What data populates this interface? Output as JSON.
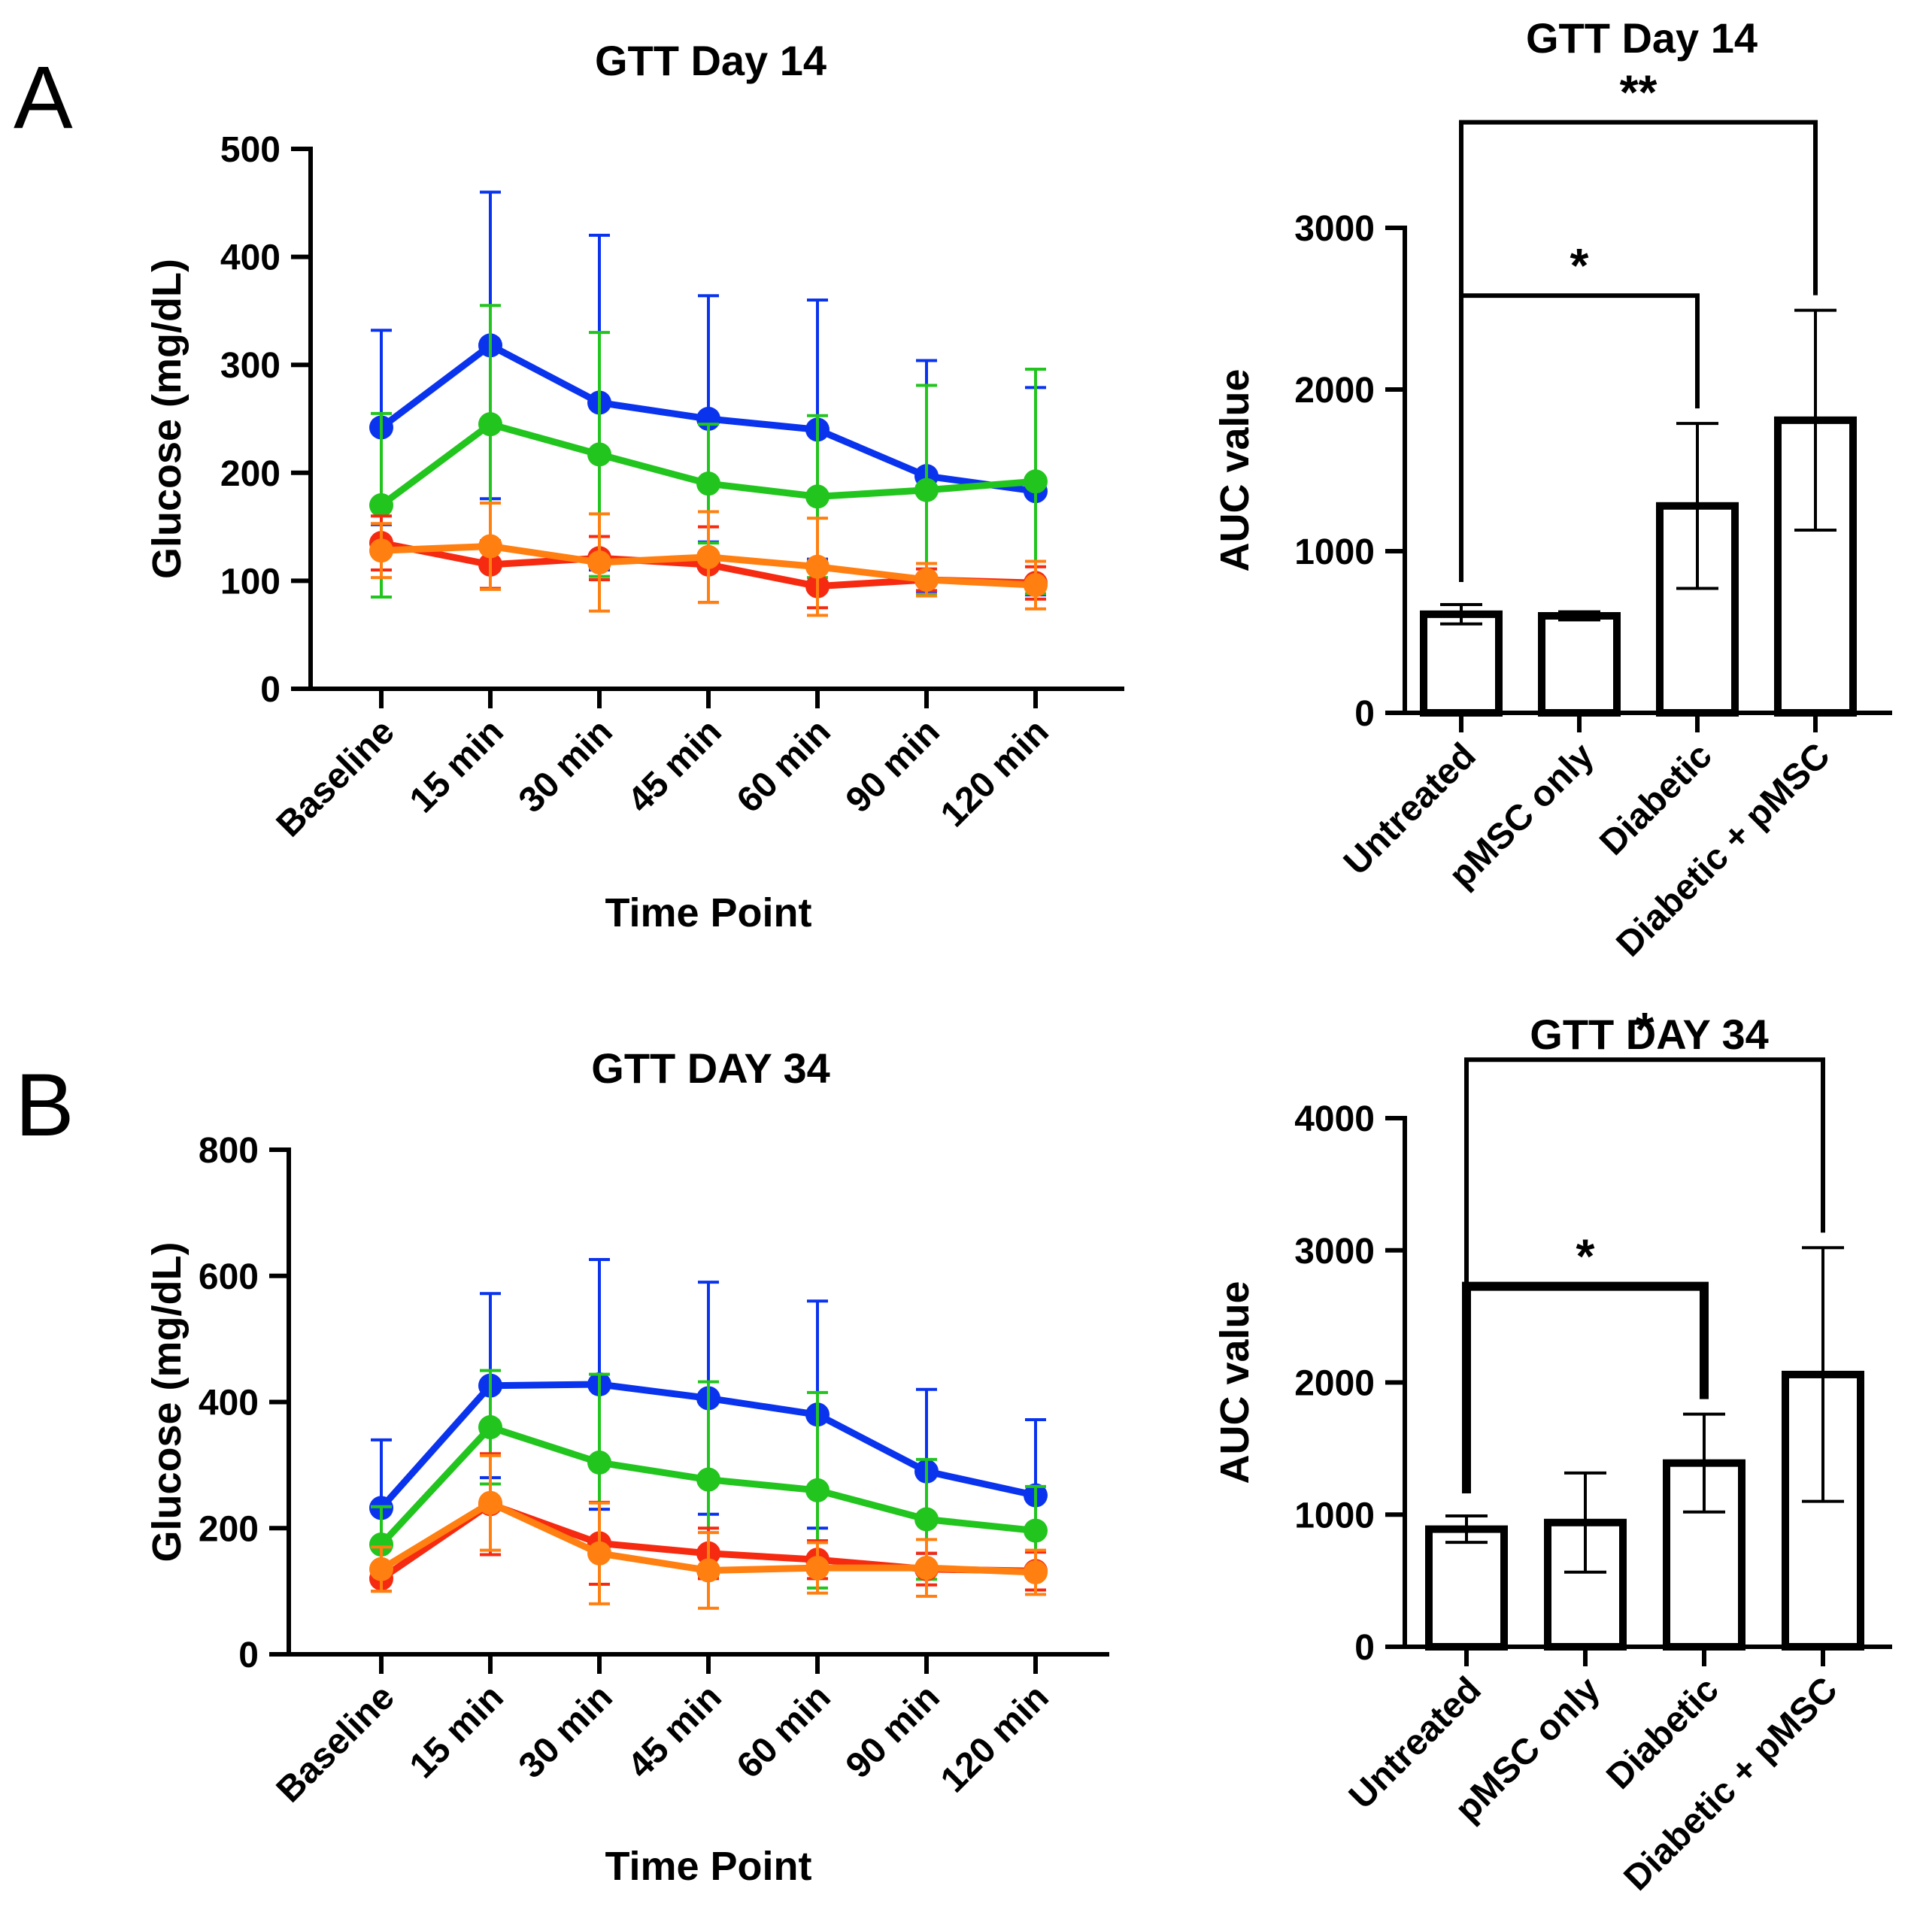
{
  "panels": [
    "A",
    "B"
  ],
  "series_colors": {
    "Diabetic + pMSC": "#0a33ee",
    "Diabetic": "#22c41e",
    "Untreated": "#f52a10",
    "pMSC only": "#ff7f10"
  },
  "chart_data": [
    {
      "id": "gtt-day14-line",
      "panel": "A",
      "type": "line",
      "title": "GTT Day 14",
      "xlabel": "Time Point",
      "ylabel": "Glucose (mg/dL)",
      "ylim": [
        0,
        500
      ],
      "yticks": [
        0,
        100,
        200,
        300,
        400,
        500
      ],
      "categories": [
        "Baseline",
        "15 min",
        "30 min",
        "45 min",
        "60 min",
        "90 min",
        "120 min"
      ],
      "series": [
        {
          "name": "Diabetic + pMSC",
          "color": "#0a33ee",
          "values": [
            242,
            318,
            265,
            250,
            240,
            197,
            183
          ],
          "err": [
            90,
            142,
            155,
            114,
            120,
            107,
            96
          ]
        },
        {
          "name": "Diabetic",
          "color": "#22c41e",
          "values": [
            170,
            245,
            217,
            190,
            178,
            184,
            192
          ],
          "err": [
            85,
            110,
            113,
            55,
            75,
            97,
            104
          ]
        },
        {
          "name": "Untreated",
          "color": "#f52a10",
          "values": [
            135,
            115,
            121,
            115,
            95,
            101,
            98
          ],
          "err": [
            25,
            22,
            20,
            35,
            20,
            10,
            15
          ]
        },
        {
          "name": "pMSC only",
          "color": "#ff7f10",
          "values": [
            128,
            132,
            117,
            122,
            113,
            101,
            96
          ],
          "err": [
            25,
            40,
            45,
            42,
            45,
            15,
            22
          ]
        }
      ]
    },
    {
      "id": "gtt-day14-auc",
      "panel": "A",
      "type": "bar",
      "title": "GTT Day 14",
      "xlabel": "",
      "ylabel": "AUC value",
      "ylim": [
        0,
        3000
      ],
      "yticks": [
        0,
        1000,
        2000,
        3000
      ],
      "categories": [
        "Untreated",
        "pMSC only",
        "Diabetic",
        "Diabetic + pMSC"
      ],
      "values": [
        610,
        600,
        1280,
        1810
      ],
      "err": [
        60,
        25,
        510,
        680
      ],
      "significance": [
        {
          "from": 0,
          "to": 2,
          "label": "*"
        },
        {
          "from": 0,
          "to": 3,
          "label": "**"
        }
      ]
    },
    {
      "id": "gtt-day34-line",
      "panel": "B",
      "type": "line",
      "title": "GTT DAY 34",
      "xlabel": "Time Point",
      "ylabel": "Glucose (mg/dL)",
      "ylim": [
        0,
        800
      ],
      "yticks": [
        0,
        200,
        400,
        600,
        800
      ],
      "categories": [
        "Baseline",
        "15 min",
        "30 min",
        "45 min",
        "60 min",
        "90 min",
        "120 min"
      ],
      "series": [
        {
          "name": "Diabetic + pMSC",
          "color": "#0a33ee",
          "values": [
            232,
            426,
            428,
            406,
            380,
            290,
            252
          ],
          "err": [
            108,
            146,
            198,
            184,
            180,
            130,
            120
          ]
        },
        {
          "name": "Diabetic",
          "color": "#22c41e",
          "values": [
            174,
            360,
            304,
            277,
            260,
            214,
            196
          ],
          "err": [
            60,
            90,
            140,
            155,
            155,
            95,
            70
          ]
        },
        {
          "name": "Untreated",
          "color": "#f52a10",
          "values": [
            120,
            238,
            176,
            160,
            150,
            135,
            132
          ],
          "err": [
            20,
            80,
            65,
            40,
            30,
            25,
            30
          ]
        },
        {
          "name": "pMSC only",
          "color": "#ff7f10",
          "values": [
            135,
            240,
            160,
            133,
            137,
            137,
            130
          ],
          "err": [
            35,
            75,
            80,
            60,
            40,
            45,
            35
          ]
        }
      ]
    },
    {
      "id": "gtt-day34-auc",
      "panel": "B",
      "type": "bar",
      "title": "GTT DAY 34",
      "xlabel": "",
      "ylabel": "AUC value",
      "ylim": [
        0,
        4000
      ],
      "yticks": [
        0,
        1000,
        2000,
        3000,
        4000
      ],
      "categories": [
        "Untreated",
        "pMSC only",
        "Diabetic",
        "Diabetic + pMSC"
      ],
      "values": [
        890,
        940,
        1390,
        2060
      ],
      "err": [
        100,
        375,
        370,
        960
      ],
      "significance": [
        {
          "from": 0,
          "to": 2,
          "label": "*"
        },
        {
          "from": 0,
          "to": 3,
          "label": "*"
        }
      ]
    }
  ]
}
